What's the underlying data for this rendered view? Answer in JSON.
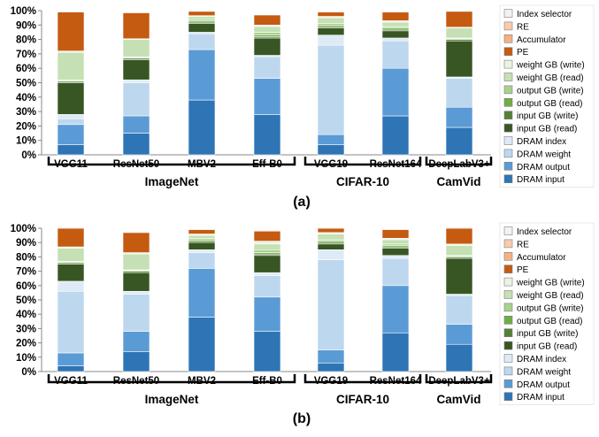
{
  "legend_entries": [
    {
      "name": "Index selector",
      "color": "#F2F2F2"
    },
    {
      "name": "RE",
      "color": "#F8CBAD"
    },
    {
      "name": "Accumulator",
      "color": "#F4B183"
    },
    {
      "name": "PE",
      "color": "#C55A11"
    },
    {
      "name": "weight GB (write)",
      "color": "#EBF4E2"
    },
    {
      "name": "weight GB (read)",
      "color": "#C5E0B4"
    },
    {
      "name": "output GB (write)",
      "color": "#A9D18E"
    },
    {
      "name": "output GB (read)",
      "color": "#70AD47"
    },
    {
      "name": "input GB (write)",
      "color": "#548235"
    },
    {
      "name": "input GB (read)",
      "color": "#375623"
    },
    {
      "name": "DRAM index",
      "color": "#DEEBF7"
    },
    {
      "name": "DRAM weight",
      "color": "#BDD7EE"
    },
    {
      "name": "DRAM output",
      "color": "#5B9BD5"
    },
    {
      "name": "DRAM input",
      "color": "#2E75B6"
    }
  ],
  "chart_data": [
    {
      "type": "bar",
      "stacked": true,
      "caption": "(a)",
      "ylim": [
        0,
        100
      ],
      "yticks": [
        "0%",
        "10%",
        "20%",
        "30%",
        "40%",
        "50%",
        "60%",
        "70%",
        "80%",
        "90%",
        "100%"
      ],
      "grid": false,
      "legend_position": "right",
      "categories": [
        "VGG11",
        "ResNet50",
        "MBV2",
        "Eff-B0",
        "VGG19",
        "ResNet164",
        "DeepLabV3+"
      ],
      "groups": [
        {
          "name": "ImageNet",
          "categories": [
            "VGG11",
            "ResNet50",
            "MBV2",
            "Eff-B0"
          ]
        },
        {
          "name": "CIFAR-10",
          "categories": [
            "VGG19",
            "ResNet164"
          ]
        },
        {
          "name": "CamVid",
          "categories": [
            "DeepLabV3+"
          ]
        }
      ],
      "series": [
        {
          "name": "DRAM input",
          "values": [
            7,
            15,
            38,
            28,
            7,
            27,
            19
          ]
        },
        {
          "name": "DRAM output",
          "values": [
            14,
            12,
            35,
            25,
            7,
            33,
            14
          ]
        },
        {
          "name": "DRAM weight",
          "values": [
            4,
            23,
            11,
            15,
            62,
            19,
            20
          ]
        },
        {
          "name": "DRAM index",
          "values": [
            3,
            2,
            1,
            1,
            7,
            2,
            1
          ]
        },
        {
          "name": "input GB (read)",
          "values": [
            22,
            14,
            6,
            12,
            5,
            5,
            25
          ]
        },
        {
          "name": "input GB (write)",
          "values": [
            1,
            1,
            1,
            1,
            1,
            1,
            1
          ]
        },
        {
          "name": "output GB (read)",
          "values": [
            0.5,
            0.5,
            1,
            1,
            1,
            1,
            0.5
          ]
        },
        {
          "name": "output GB (write)",
          "values": [
            0.5,
            0.5,
            1,
            2,
            1,
            1,
            0.5
          ]
        },
        {
          "name": "weight GB (read)",
          "values": [
            19,
            12,
            2,
            4,
            4,
            3,
            7
          ]
        },
        {
          "name": "weight GB (write)",
          "values": [
            1,
            0.5,
            0.5,
            1,
            1,
            1,
            0.5
          ]
        },
        {
          "name": "PE",
          "values": [
            27,
            18,
            3,
            7,
            3,
            6,
            11
          ]
        },
        {
          "name": "Accumulator",
          "values": [
            0.5,
            0.5,
            0.2,
            0.2,
            0.2,
            0.2,
            0.2
          ]
        },
        {
          "name": "RE",
          "values": [
            0.3,
            0.3,
            0.1,
            0.1,
            0.1,
            0.1,
            0.1
          ]
        },
        {
          "name": "Index selector",
          "values": [
            0.2,
            0.2,
            0.2,
            0.2,
            0.2,
            0.2,
            0.2
          ]
        }
      ]
    },
    {
      "type": "bar",
      "stacked": true,
      "caption": "(b)",
      "ylim": [
        0,
        100
      ],
      "yticks": [
        "0%",
        "10%",
        "20%",
        "30%",
        "40%",
        "50%",
        "60%",
        "70%",
        "80%",
        "90%",
        "100%"
      ],
      "grid": false,
      "legend_position": "right",
      "categories": [
        "VGG11",
        "ResNet50",
        "MBV2",
        "Eff-B0",
        "VGG19",
        "ResNet164",
        "DeepLabV3+"
      ],
      "groups": [
        {
          "name": "ImageNet",
          "categories": [
            "VGG11",
            "ResNet50",
            "MBV2",
            "Eff-B0"
          ]
        },
        {
          "name": "CIFAR-10",
          "categories": [
            "VGG19",
            "ResNet164"
          ]
        },
        {
          "name": "CamVid",
          "categories": [
            "DeepLabV3+"
          ]
        }
      ],
      "series": [
        {
          "name": "DRAM input",
          "values": [
            4,
            14,
            38,
            28,
            6,
            27,
            19
          ]
        },
        {
          "name": "DRAM output",
          "values": [
            9,
            14,
            34,
            24,
            9,
            33,
            14
          ]
        },
        {
          "name": "DRAM weight",
          "values": [
            43,
            26,
            11,
            15,
            63,
            19,
            20
          ]
        },
        {
          "name": "DRAM index",
          "values": [
            7,
            2,
            2,
            2,
            7,
            2,
            1
          ]
        },
        {
          "name": "input GB (read)",
          "values": [
            12,
            13,
            5,
            12,
            4,
            5,
            25
          ]
        },
        {
          "name": "input GB (write)",
          "values": [
            1,
            1,
            1,
            1,
            1,
            1,
            1
          ]
        },
        {
          "name": "output GB (read)",
          "values": [
            0.5,
            0.5,
            1,
            1,
            1,
            1,
            0.5
          ]
        },
        {
          "name": "output GB (write)",
          "values": [
            0.5,
            0.5,
            1,
            2,
            1,
            1,
            0.5
          ]
        },
        {
          "name": "weight GB (read)",
          "values": [
            9,
            11,
            2,
            4,
            4,
            3,
            7
          ]
        },
        {
          "name": "weight GB (write)",
          "values": [
            1,
            1,
            1,
            2,
            1,
            1,
            1
          ]
        },
        {
          "name": "PE",
          "values": [
            13,
            14,
            3,
            7,
            3,
            6,
            11
          ]
        },
        {
          "name": "Accumulator",
          "values": [
            0.5,
            0.5,
            0.5,
            0.5,
            0.5,
            0.5,
            0.5
          ]
        },
        {
          "name": "RE",
          "values": [
            0.3,
            0.3,
            0.3,
            0.3,
            0.3,
            0.3,
            0.3
          ]
        },
        {
          "name": "Index selector",
          "values": [
            0.2,
            0.2,
            0.2,
            0.2,
            0.2,
            0.2,
            0.2
          ]
        }
      ]
    }
  ]
}
